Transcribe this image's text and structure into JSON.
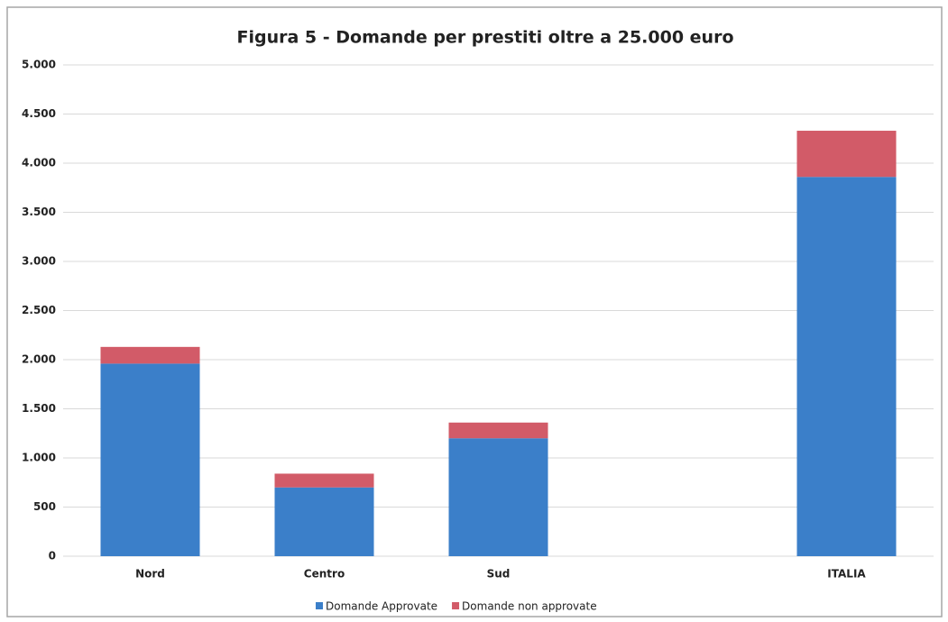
{
  "chart_data": {
    "type": "stacked_bar",
    "title": "Figura 5 - Domande per prestiti oltre a  25.000 euro",
    "categories": [
      "Nord",
      "Centro",
      "Sud",
      null,
      "ITALIA"
    ],
    "series": [
      {
        "name": "Domande Approvate",
        "color": "#3b7fc9",
        "values": [
          1960,
          700,
          1200,
          null,
          3860
        ]
      },
      {
        "name": "Domande non approvate",
        "color": "#d25b68",
        "values": [
          170,
          140,
          160,
          null,
          470
        ]
      }
    ],
    "ylim": [
      0,
      5000
    ],
    "yticks": [
      0,
      500,
      {
        "value": 1000,
        "label": "1.000"
      },
      {
        "value": 1500,
        "label": "1.500"
      },
      {
        "value": 2000,
        "label": "2.000"
      },
      {
        "value": 2500,
        "label": "2.500"
      },
      {
        "value": 3000,
        "label": "3.000"
      },
      {
        "value": 3500,
        "label": "3.500"
      },
      {
        "value": 4000,
        "label": "4.000"
      },
      {
        "value": 4500,
        "label": "4.500"
      },
      {
        "value": 5000,
        "label": "5.000"
      }
    ],
    "grid": true,
    "legend": "bottom"
  }
}
